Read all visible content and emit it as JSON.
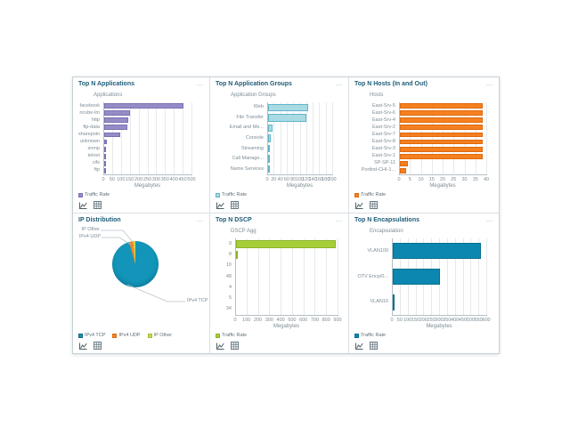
{
  "dashboard": {
    "panel_menu_label": "…",
    "traffic_legend_label": "Traffic Rate",
    "footer": {
      "chart_view_icon": "line-chart-icon",
      "table_view_icon": "table-icon"
    },
    "colors": {
      "title_text": "#1d5c78",
      "axis_text": "#7d8d96",
      "purple": "#958cc6",
      "purple_border": "#7a70b5",
      "lightblue": "#aadbe5",
      "lightblue_border": "#62b4c8",
      "orange": "#f5801f",
      "orange_border": "#e0690d",
      "green": "#a6ce39",
      "green_border": "#8ab32a",
      "blue": "#0b87b0",
      "blue_border": "#09708f",
      "pie_teal": "#1295b8",
      "pie_orange": "#f5822b",
      "pie_green": "#c9d94e"
    },
    "panels": [
      {
        "id": "top-n-applications",
        "title": "Top N Applications",
        "legend": [
          {
            "label": "Traffic Rate",
            "color": "#958cc6",
            "border": "#7a70b5"
          }
        ],
        "chart_data": {
          "type": "bar",
          "orientation": "horizontal",
          "axis_title": "Applications",
          "xlabel": "Megabytes",
          "categories": [
            "facebook",
            "ncube-lm",
            "http",
            "ftp-data",
            "sharepoint",
            "unknown",
            "snmp",
            "telnet",
            "cifs",
            "ftp"
          ],
          "values": [
            450,
            145,
            138,
            131,
            92,
            16,
            9,
            4,
            2,
            1
          ],
          "xticks": [
            0,
            50,
            100,
            150,
            200,
            250,
            300,
            350,
            400,
            450,
            500
          ],
          "xlim": [
            0,
            500
          ],
          "bar_color": "#958cc6",
          "bar_border": "#7a70b5",
          "grid": true
        }
      },
      {
        "id": "top-n-application-groups",
        "title": "Top N Application Groups",
        "legend": [
          {
            "label": "Traffic Rate",
            "color": "#aadbe5",
            "border": "#62b4c8"
          }
        ],
        "chart_data": {
          "type": "bar",
          "orientation": "horizontal",
          "axis_title": "Application Groups",
          "xlabel": "Megabytes",
          "categories": [
            "Web",
            "File Transfer",
            "Email and Me...",
            "Console",
            "Streaming",
            "Call Manage...",
            "Name Services"
          ],
          "values": [
            122,
            118,
            13,
            7,
            1,
            0.7,
            0.5
          ],
          "xticks": [
            0,
            20,
            40,
            60,
            80,
            100,
            120,
            140,
            160,
            180,
            200
          ],
          "xlim": [
            0,
            200
          ],
          "bar_color": "#aadbe5",
          "bar_border": "#62b4c8",
          "grid": true
        }
      },
      {
        "id": "top-n-hosts-in-and-out",
        "title": "Top N Hosts (In and Out)",
        "legend": [
          {
            "label": "Traffic Rate",
            "color": "#f5801f",
            "border": "#e0690d"
          }
        ],
        "chart_data": {
          "type": "bar",
          "orientation": "horizontal",
          "axis_title": "Hosts",
          "xlabel": "Megabytes",
          "categories": [
            "East-Srv-5",
            "East-Srv-6",
            "East-Srv-4",
            "East-Srv-2",
            "East-Srv-7",
            "East-Srv-8",
            "East-Srv-3",
            "East-Srv-1",
            "SP-SP-11",
            "Portlnd-CHI-1..."
          ],
          "values": [
            38,
            38,
            38,
            38,
            38,
            38,
            38,
            38,
            3.8,
            3.0
          ],
          "xticks": [
            0,
            5,
            10,
            15,
            20,
            25,
            30,
            35,
            40
          ],
          "xlim": [
            0,
            40
          ],
          "bar_color": "#f5801f",
          "bar_border": "#e0690d",
          "grid": true
        }
      },
      {
        "id": "ip-distribution",
        "title": "IP Distribution",
        "legend": [
          {
            "label": "IPv4 TCP",
            "color": "#1295b8",
            "border": "#0d7априруб994"
          },
          {
            "label": "IPv4 UDP",
            "color": "#f5822b",
            "border": "#d96d12"
          },
          {
            "label": "IP Other",
            "color": "#c9d94e",
            "border": "#a8b83c"
          }
        ],
        "chart_data": {
          "type": "pie",
          "slices": [
            {
              "label": "IPv4 TCP",
              "pct": 95.6,
              "color": "#1295b8"
            },
            {
              "label": "IPv4 UDP",
              "pct": 2.8,
              "color": "#f5822b"
            },
            {
              "label": "IP Other",
              "pct": 1.6,
              "color": "#c9d94e"
            }
          ],
          "callouts": {
            "top1": "IP Other",
            "top2": "IPv4 UDP",
            "bottom": "IPv4 TCP"
          }
        }
      },
      {
        "id": "top-n-dscp",
        "title": "Top N DSCP",
        "legend": [
          {
            "label": "Traffic Rate",
            "color": "#a6ce39",
            "border": "#8ab32a"
          }
        ],
        "chart_data": {
          "type": "bar",
          "orientation": "horizontal",
          "axis_title": "DSCP Agg",
          "xlabel": "Megabytes",
          "categories": [
            "0",
            "8",
            "10",
            "48",
            "4",
            "5",
            "34"
          ],
          "values": [
            875,
            10,
            0,
            0,
            0,
            0,
            0
          ],
          "xticks": [
            0,
            100,
            200,
            300,
            400,
            500,
            600,
            700,
            800,
            900
          ],
          "xlim": [
            0,
            900
          ],
          "bar_color": "#a6ce39",
          "bar_border": "#8ab32a",
          "grid": true
        }
      },
      {
        "id": "top-n-encapsulations",
        "title": "Top N Encapsulations",
        "legend": [
          {
            "label": "Traffic Rate",
            "color": "#0b87b0",
            "border": "#09708f"
          }
        ],
        "chart_data": {
          "type": "bar",
          "orientation": "horizontal",
          "axis_title": "Encapsulation",
          "xlabel": "Megabytes",
          "categories": [
            "VLAN100",
            "OTV Encp/0...",
            "VLAN10"
          ],
          "values": [
            560,
            302,
            1
          ],
          "xticks": [
            0,
            50,
            100,
            150,
            200,
            250,
            300,
            350,
            400,
            450,
            500,
            550,
            600
          ],
          "xlim": [
            0,
            600
          ],
          "bar_color": "#0b87b0",
          "bar_border": "#09708f",
          "grid": true
        }
      }
    ]
  }
}
